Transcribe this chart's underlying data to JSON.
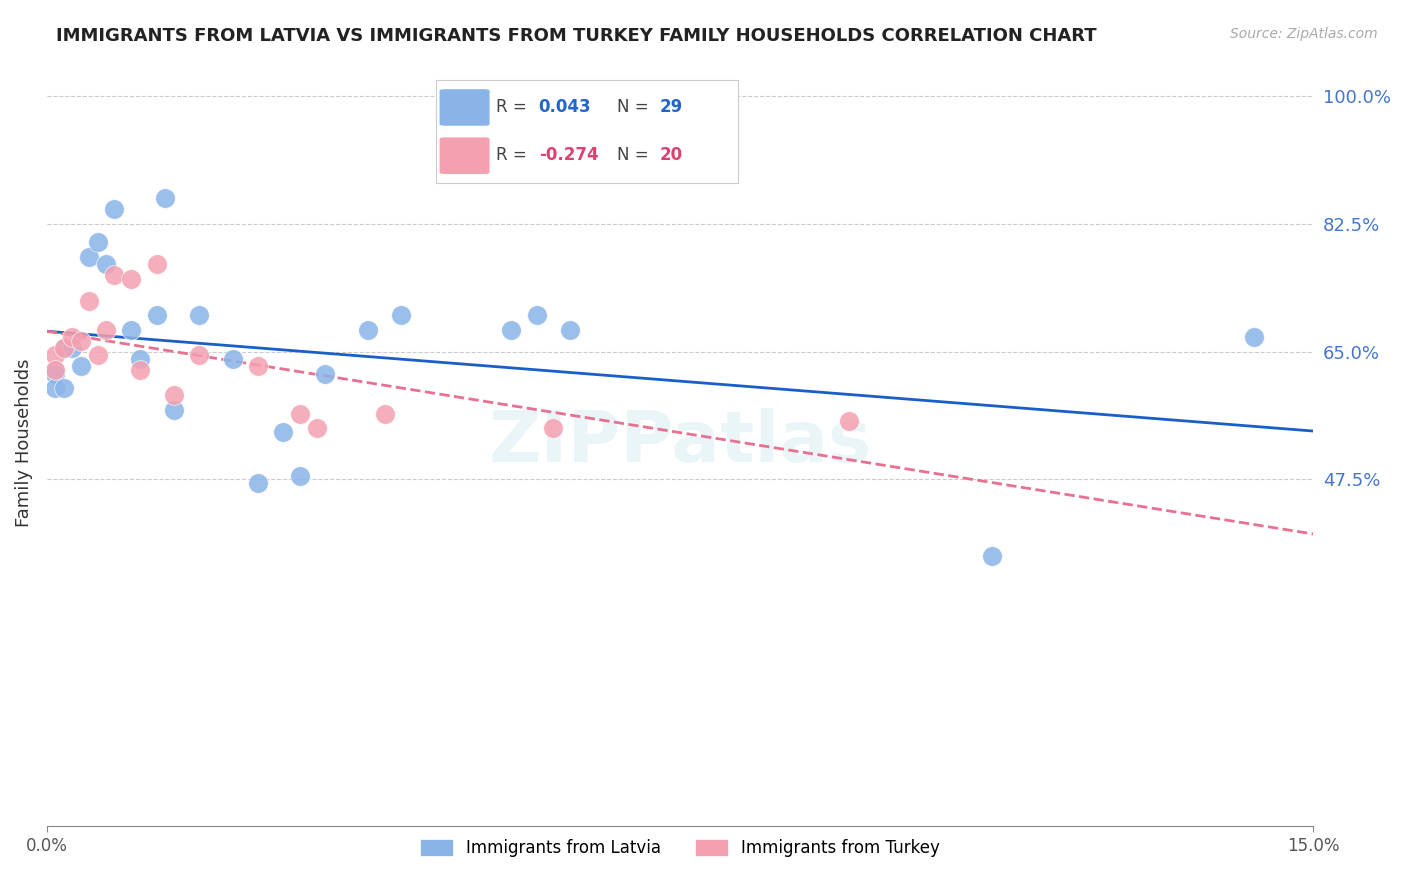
{
  "title": "IMMIGRANTS FROM LATVIA VS IMMIGRANTS FROM TURKEY FAMILY HOUSEHOLDS CORRELATION CHART",
  "source": "Source: ZipAtlas.com",
  "ylabel": "Family Households",
  "ytick_labels_right": [
    "100.0%",
    "82.5%",
    "65.0%",
    "47.5%"
  ],
  "ytick_positions": [
    1.0,
    0.825,
    0.65,
    0.475
  ],
  "xlim": [
    0.0,
    0.15
  ],
  "ylim": [
    0.0,
    1.05
  ],
  "legend_latvia_R": "0.043",
  "legend_latvia_N": "29",
  "legend_turkey_R": "-0.274",
  "legend_turkey_N": "20",
  "color_latvia": "#8ab4e8",
  "color_turkey": "#f4a0b0",
  "color_latvia_line": "#1a5fc8",
  "color_turkey_line": "#e87090",
  "latvia_x": [
    0.001,
    0.001,
    0.001,
    0.002,
    0.002,
    0.003,
    0.004,
    0.005,
    0.006,
    0.007,
    0.008,
    0.01,
    0.011,
    0.013,
    0.014,
    0.015,
    0.018,
    0.022,
    0.025,
    0.028,
    0.03,
    0.033,
    0.038,
    0.042,
    0.055,
    0.058,
    0.062,
    0.112,
    0.143
  ],
  "latvia_y": [
    0.625,
    0.62,
    0.6,
    0.6,
    0.655,
    0.655,
    0.63,
    0.78,
    0.8,
    0.77,
    0.845,
    0.68,
    0.64,
    0.7,
    0.86,
    0.57,
    0.7,
    0.64,
    0.47,
    0.54,
    0.48,
    0.62,
    0.68,
    0.7,
    0.68,
    0.7,
    0.68,
    0.37,
    0.67
  ],
  "turkey_x": [
    0.001,
    0.001,
    0.002,
    0.003,
    0.004,
    0.005,
    0.006,
    0.007,
    0.008,
    0.01,
    0.011,
    0.013,
    0.015,
    0.018,
    0.025,
    0.03,
    0.032,
    0.04,
    0.06,
    0.095
  ],
  "turkey_y": [
    0.645,
    0.625,
    0.655,
    0.67,
    0.665,
    0.72,
    0.645,
    0.68,
    0.755,
    0.75,
    0.625,
    0.77,
    0.59,
    0.645,
    0.63,
    0.565,
    0.545,
    0.565,
    0.545,
    0.555
  ],
  "watermark": "ZIPPatlas",
  "background_color": "#ffffff",
  "grid_color": "#cccccc"
}
